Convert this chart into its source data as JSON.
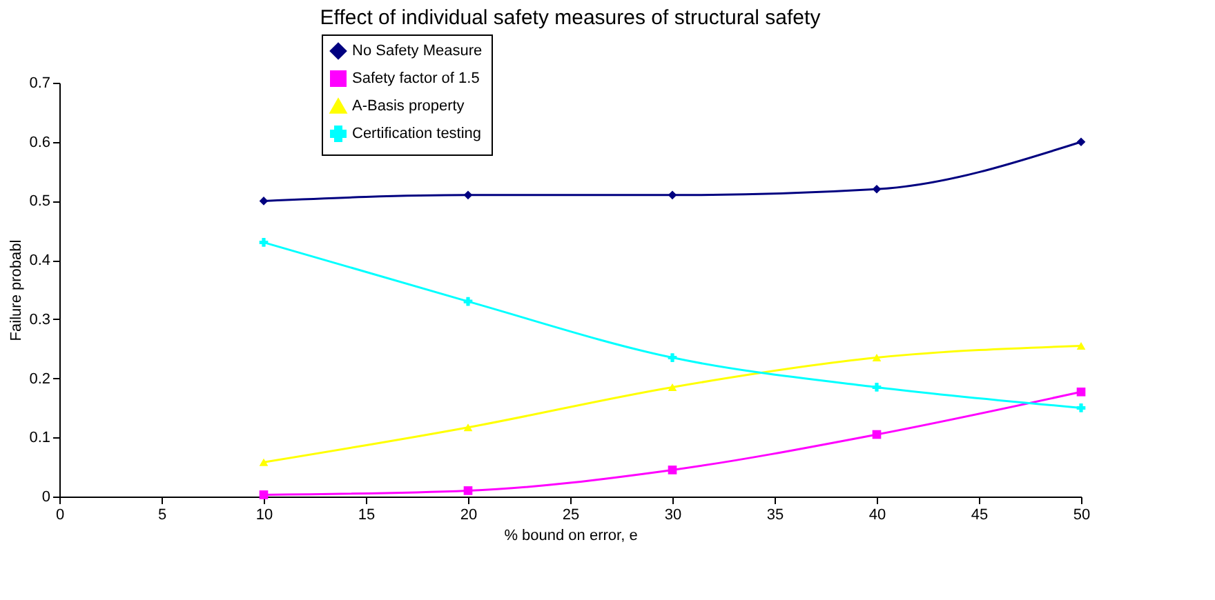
{
  "chart_data": {
    "type": "line",
    "title": "Effect of individual safety measures of structural safety",
    "xlabel": "% bound on error, e",
    "ylabel": "Failure probabl",
    "x": [
      10,
      20,
      30,
      40,
      50
    ],
    "series": [
      {
        "name": "No Safety Measure",
        "color": "#000080",
        "marker": "diamond",
        "values": [
          0.5,
          0.51,
          0.51,
          0.52,
          0.6
        ]
      },
      {
        "name": "Safety factor of 1.5",
        "color": "#ff00ff",
        "marker": "square",
        "values": [
          0.003,
          0.01,
          0.045,
          0.105,
          0.177
        ]
      },
      {
        "name": "A-Basis property",
        "color": "#ffff00",
        "marker": "triangle",
        "values": [
          0.058,
          0.117,
          0.185,
          0.235,
          0.255
        ]
      },
      {
        "name": "Certification testing",
        "color": "#00ffff",
        "marker": "cross",
        "values": [
          0.43,
          0.33,
          0.235,
          0.185,
          0.15
        ]
      }
    ],
    "xlim": [
      0,
      50
    ],
    "xticks": [
      0,
      5,
      10,
      15,
      20,
      25,
      30,
      35,
      40,
      45,
      50
    ],
    "ylim": [
      0,
      0.7
    ],
    "yticks": [
      0,
      0.1,
      0.2,
      0.3,
      0.4,
      0.5,
      0.6,
      0.7
    ],
    "grid": false,
    "legend": "top left",
    "line_style": "solid"
  }
}
